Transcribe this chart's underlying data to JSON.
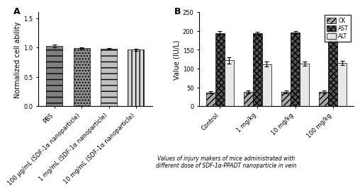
{
  "panel_a": {
    "categories": [
      "PBS",
      "100 μg/mL (SDF-1α nanoparticle)",
      "1 mg/mL (SDF-1α nanoparticle)",
      "10 mg/mL (SDF-1α nanoparticle)"
    ],
    "values": [
      1.025,
      0.985,
      0.975,
      0.96
    ],
    "errors": [
      0.022,
      0.013,
      0.01,
      0.018
    ],
    "ylabel": "Normalized cell ability",
    "ylim": [
      0.0,
      1.6
    ],
    "yticks": [
      0.0,
      0.5,
      1.0,
      1.5
    ],
    "label": "A",
    "hatches": [
      "---",
      ".....",
      "---",
      "|||"
    ],
    "bar_colors": [
      "#808080",
      "#909090",
      "#c0c0c0",
      "#d8d8d8"
    ]
  },
  "panel_b": {
    "categories": [
      "Control",
      "1 mg/kg",
      "10 mg/kg",
      "100 mg/kg"
    ],
    "ck_values": [
      37,
      38,
      38,
      38
    ],
    "ast_values": [
      195,
      194,
      196,
      201
    ],
    "alt_values": [
      122,
      112,
      113,
      115
    ],
    "ck_errors": [
      3,
      3,
      3,
      3
    ],
    "ast_errors": [
      4,
      4,
      4,
      5
    ],
    "alt_errors": [
      8,
      7,
      5,
      6
    ],
    "ylabel": "Value (IU/L)",
    "ylim": [
      0,
      250
    ],
    "yticks": [
      0,
      50,
      100,
      150,
      200,
      250
    ],
    "label": "B",
    "xlabel_note": "Values of injury makers of mice administrated with\ndifferent dose of SDF-1α-PPADT nanoparticle in vein",
    "legend_labels": [
      "CK",
      "AST",
      "ALT"
    ],
    "ck_hatch": "////",
    "ast_hatch": "xxxx",
    "alt_hatch": "====",
    "ck_color": "#aaaaaa",
    "ast_color": "#555555",
    "alt_color": "#e8e8e8"
  },
  "background_color": "#ffffff",
  "font_size": 7
}
